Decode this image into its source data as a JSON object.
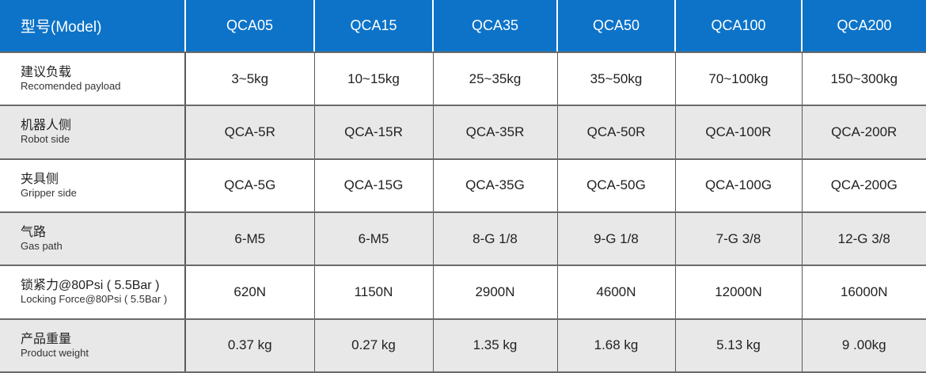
{
  "header": {
    "label": "型号(Model)",
    "models": [
      "QCA05",
      "QCA15",
      "QCA35",
      "QCA50",
      "QCA100",
      "QCA200"
    ]
  },
  "rows": [
    {
      "zh": "建议负载",
      "en": "Recomended payload",
      "values": [
        "3~5kg",
        "10~15kg",
        "25~35kg",
        "35~50kg",
        "70~100kg",
        "150~300kg"
      ]
    },
    {
      "zh": "机器人侧",
      "en": "Robot side",
      "values": [
        "QCA-5R",
        "QCA-15R",
        "QCA-35R",
        "QCA-50R",
        "QCA-100R",
        "QCA-200R"
      ]
    },
    {
      "zh": "夹具侧",
      "en": "Gripper side",
      "values": [
        "QCA-5G",
        "QCA-15G",
        "QCA-35G",
        "QCA-50G",
        "QCA-100G",
        "QCA-200G"
      ]
    },
    {
      "zh": "气路",
      "en": "Gas path",
      "values": [
        "6-M5",
        "6-M5",
        "8-G 1/8",
        "9-G 1/8",
        "7-G 3/8",
        "12-G 3/8"
      ]
    },
    {
      "zh": "锁紧力@80Psi ( 5.5Bar )",
      "en": "Locking Force@80Psi ( 5.5Bar )",
      "values": [
        "620N",
        "1150N",
        "2900N",
        "4600N",
        "12000N",
        "16000N"
      ]
    },
    {
      "zh": "产品重量",
      "en": "Product weight",
      "values": [
        "0.37 kg",
        "0.27 kg",
        "1.35 kg",
        "1.68 kg",
        "5.13 kg",
        "9 .00kg"
      ]
    }
  ]
}
